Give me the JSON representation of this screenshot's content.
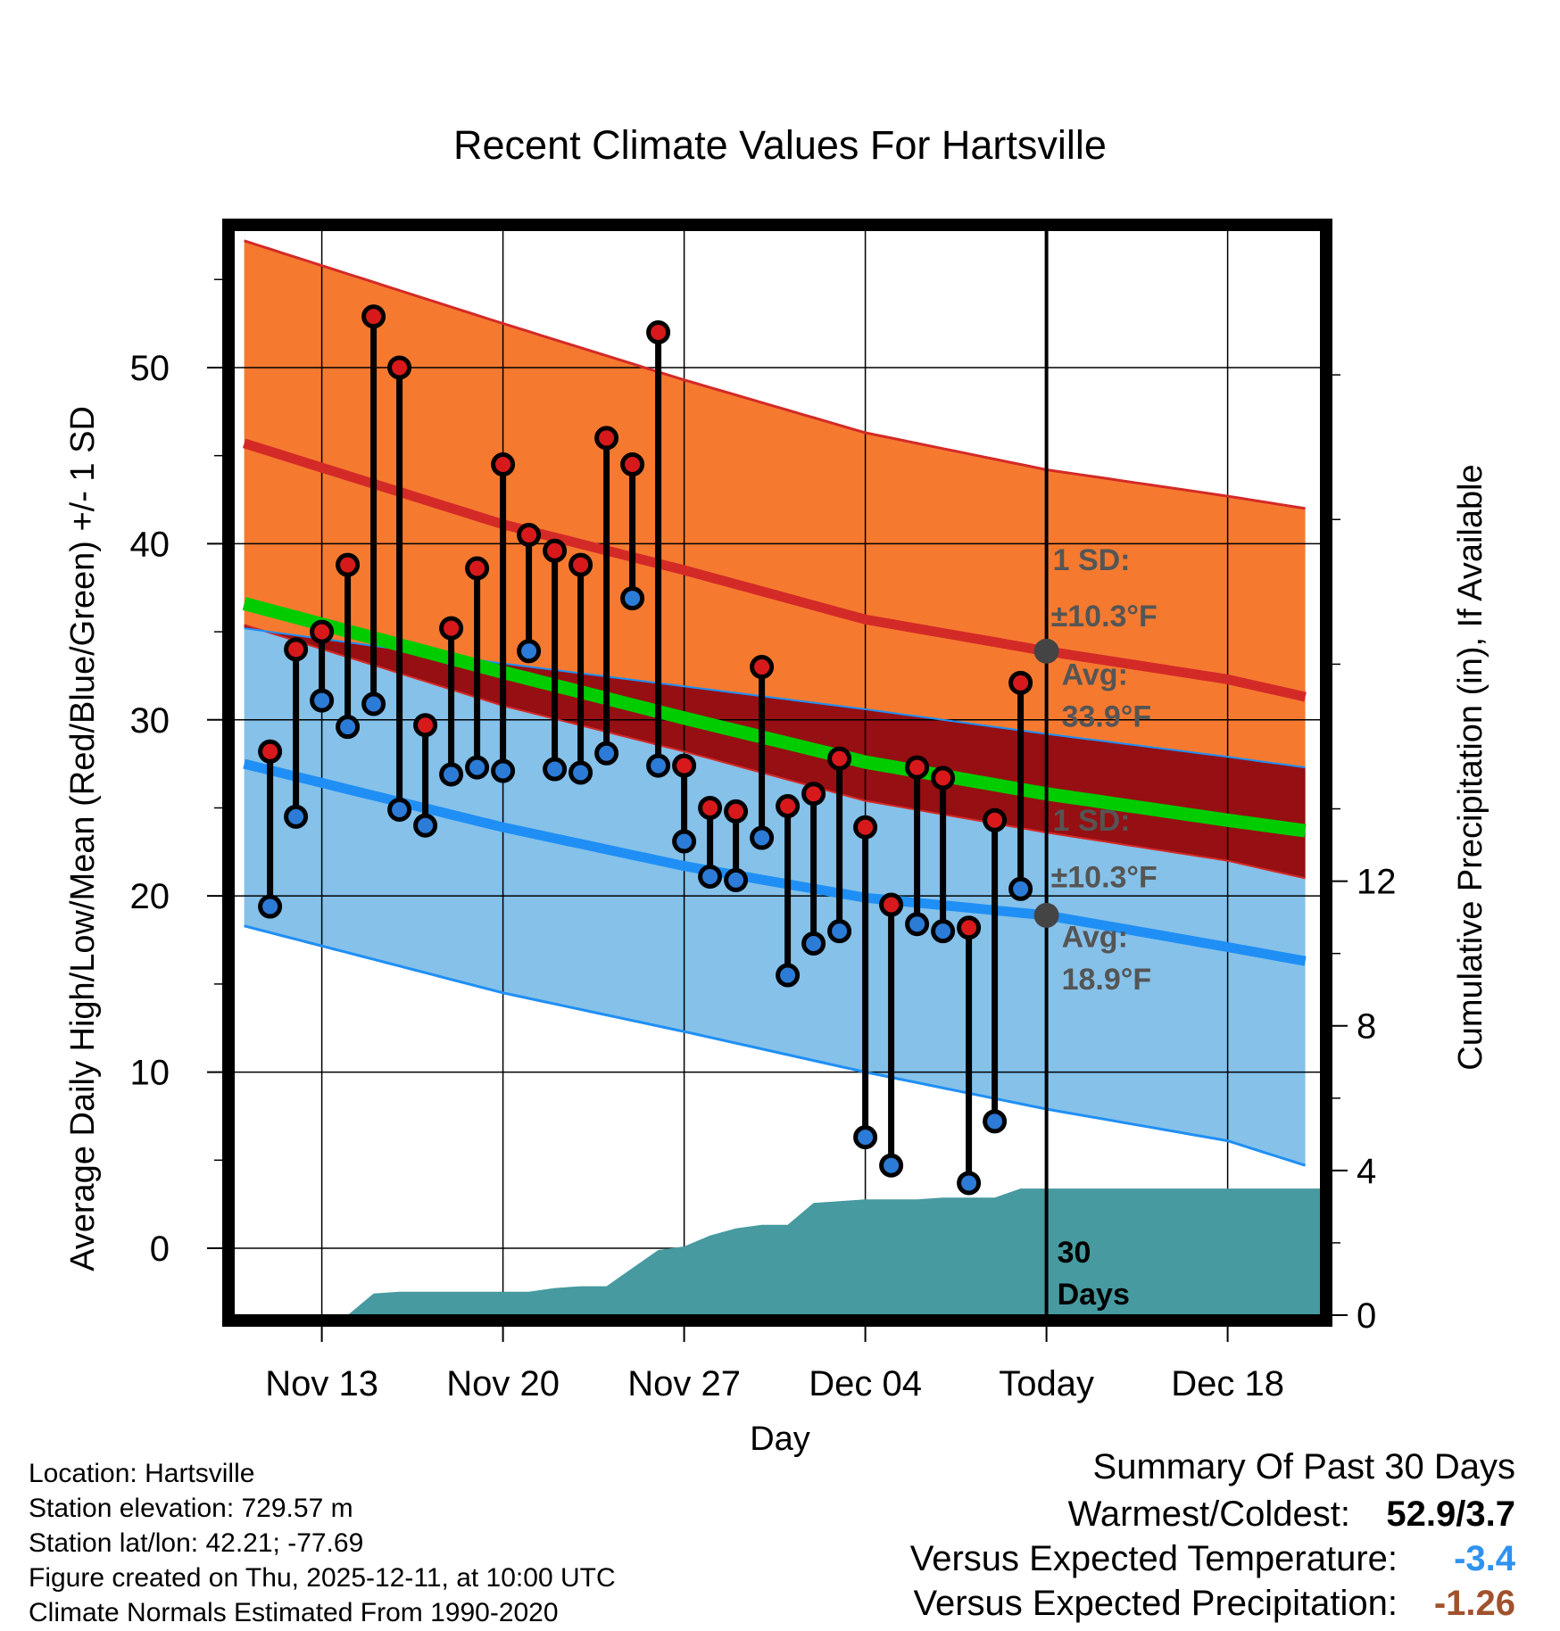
{
  "chart_data": {
    "type": "line",
    "title": "Recent Climate Values For Hartsville",
    "xlabel": "Day",
    "ylabel": "Average Daily High/Low/Mean (Red/Blue/Green) +/- 1 SD",
    "ylabel_right": "Cumulative Precipitation (in), If Available",
    "ylim": [
      -3.8,
      57.8
    ],
    "y_ticks": [
      0,
      10,
      20,
      30,
      40,
      50
    ],
    "y_tick_labels": [
      "0",
      "10",
      "20",
      "30",
      "40",
      "50"
    ],
    "y2lim": [
      0,
      30
    ],
    "y2_ticks": [
      0,
      4,
      8,
      12
    ],
    "y2_tick_labels": [
      "0",
      "4",
      "8",
      "12"
    ],
    "xlim": [
      -3.4,
      38.6
    ],
    "x_ticks": [
      0,
      7,
      14,
      21,
      28,
      35
    ],
    "x_tick_labels": [
      "Nov 13",
      "Nov 20",
      "Nov 27",
      "Dec 04",
      "Today",
      "Dec 18"
    ],
    "grid": true,
    "normals": {
      "x": [
        -3,
        7,
        14,
        21,
        28,
        35,
        38
      ],
      "high_plus_sd": [
        57.2,
        52.5,
        49.3,
        46.3,
        44.2,
        42.7,
        42.0
      ],
      "high_mean": [
        45.7,
        41.1,
        38.5,
        35.7,
        33.9,
        32.3,
        31.3
      ],
      "low_plus_sd": [
        35.2,
        33.2,
        31.9,
        30.6,
        29.2,
        27.9,
        27.3
      ],
      "mean_temp": [
        36.6,
        32.7,
        30.1,
        27.6,
        25.8,
        24.3,
        23.7
      ],
      "low_mean": [
        27.5,
        23.9,
        21.7,
        19.9,
        18.9,
        17.1,
        16.3
      ],
      "low_minus_sd": [
        18.3,
        14.5,
        12.3,
        10.0,
        7.9,
        6.1,
        4.7
      ],
      "high_minus_sd": [
        35.4,
        30.8,
        28.2,
        25.4,
        23.6,
        22.0,
        21.0
      ]
    },
    "series": [
      {
        "name": "Daily High",
        "color": "#d7191c",
        "x": [
          -2,
          -1,
          0,
          1,
          2,
          3,
          4,
          5,
          6,
          7,
          8,
          9,
          10,
          11,
          12,
          13,
          14,
          15,
          16,
          17,
          18,
          19,
          20,
          21,
          22,
          23,
          24,
          25,
          26,
          27
        ],
        "values": [
          28.2,
          34.0,
          35.0,
          38.8,
          52.9,
          50.0,
          29.7,
          35.2,
          38.6,
          44.5,
          40.5,
          39.6,
          38.8,
          46.0,
          44.5,
          52.0,
          27.4,
          25.0,
          24.8,
          33.0,
          25.1,
          25.8,
          27.8,
          23.9,
          19.5,
          27.3,
          26.7,
          18.2,
          24.3,
          32.1
        ]
      },
      {
        "name": "Daily Low",
        "color": "#2c7bd6",
        "x": [
          -2,
          -1,
          0,
          1,
          2,
          3,
          4,
          5,
          6,
          7,
          8,
          9,
          10,
          11,
          12,
          13,
          14,
          15,
          16,
          17,
          18,
          19,
          20,
          21,
          22,
          23,
          24,
          25,
          26,
          27
        ],
        "values": [
          19.4,
          24.5,
          31.1,
          29.6,
          30.9,
          24.9,
          24.0,
          26.9,
          27.3,
          27.1,
          33.9,
          27.2,
          27.0,
          28.1,
          36.9,
          27.4,
          23.1,
          21.1,
          20.9,
          23.3,
          15.5,
          17.3,
          18.0,
          6.3,
          4.7,
          18.4,
          18.0,
          3.7,
          7.2,
          20.4
        ]
      }
    ],
    "precipitation": {
      "name": "Cumulative Precipitation (in)",
      "x": [
        -3.4,
        1,
        2,
        3,
        4,
        5,
        6,
        7,
        8,
        9,
        10,
        11,
        12,
        13,
        14,
        15,
        16,
        17,
        18,
        19,
        20,
        21,
        22,
        23,
        24,
        25,
        26,
        27,
        38.6
      ],
      "values": [
        0,
        0,
        0.6,
        0.65,
        0.65,
        0.65,
        0.65,
        0.65,
        0.65,
        0.75,
        0.8,
        0.8,
        1.3,
        1.8,
        1.9,
        2.2,
        2.4,
        2.5,
        2.5,
        3.1,
        3.15,
        3.2,
        3.2,
        3.2,
        3.25,
        3.25,
        3.25,
        3.5,
        3.5
      ]
    },
    "today_x": 28,
    "annotations": {
      "high_sd": "1 SD:",
      "high_sd_value": "±10.3°F",
      "high_avg_label": "Avg:",
      "high_avg_value": "33.9°F",
      "low_sd": "1 SD:",
      "low_sd_value": "±10.3°F",
      "low_avg_label": "Avg:",
      "low_avg_value": "18.9°F",
      "days_num": "30",
      "days_word": "Days",
      "high_avg": 33.9,
      "low_avg": 18.9
    }
  },
  "colors": {
    "high_band": "#f57a30",
    "high_line": "#d42a27",
    "high_edge": "#d42a27",
    "low_band": "#85c1e9",
    "low_line": "#1f8ff5",
    "low_edge": "#1f8ff5",
    "overlap_band": "#960f13",
    "mean_line": "#00cc00",
    "precip": "#469aa0",
    "annotation": "#555555",
    "warm_cold": "#000000",
    "temp_anomaly": "#2e93f0",
    "precip_anomaly": "#a0522d"
  },
  "info": {
    "location": "Location: Hartsville",
    "elevation": "Station elevation: 729.57 m",
    "latlon": "Station lat/lon: 42.21; -77.69",
    "created": "Figure created on Thu, 2025-12-11, at 10:00 UTC",
    "normals": "Climate Normals Estimated From 1990-2020"
  },
  "summary": {
    "title": "Summary Of Past 30 Days",
    "warm_label": "Warmest/Coldest:",
    "warm_value": "52.9/3.7",
    "temp_label": "Versus Expected Temperature:",
    "temp_value": "-3.4",
    "precip_label": "Versus Expected Precipitation:",
    "precip_value": "-1.26"
  }
}
